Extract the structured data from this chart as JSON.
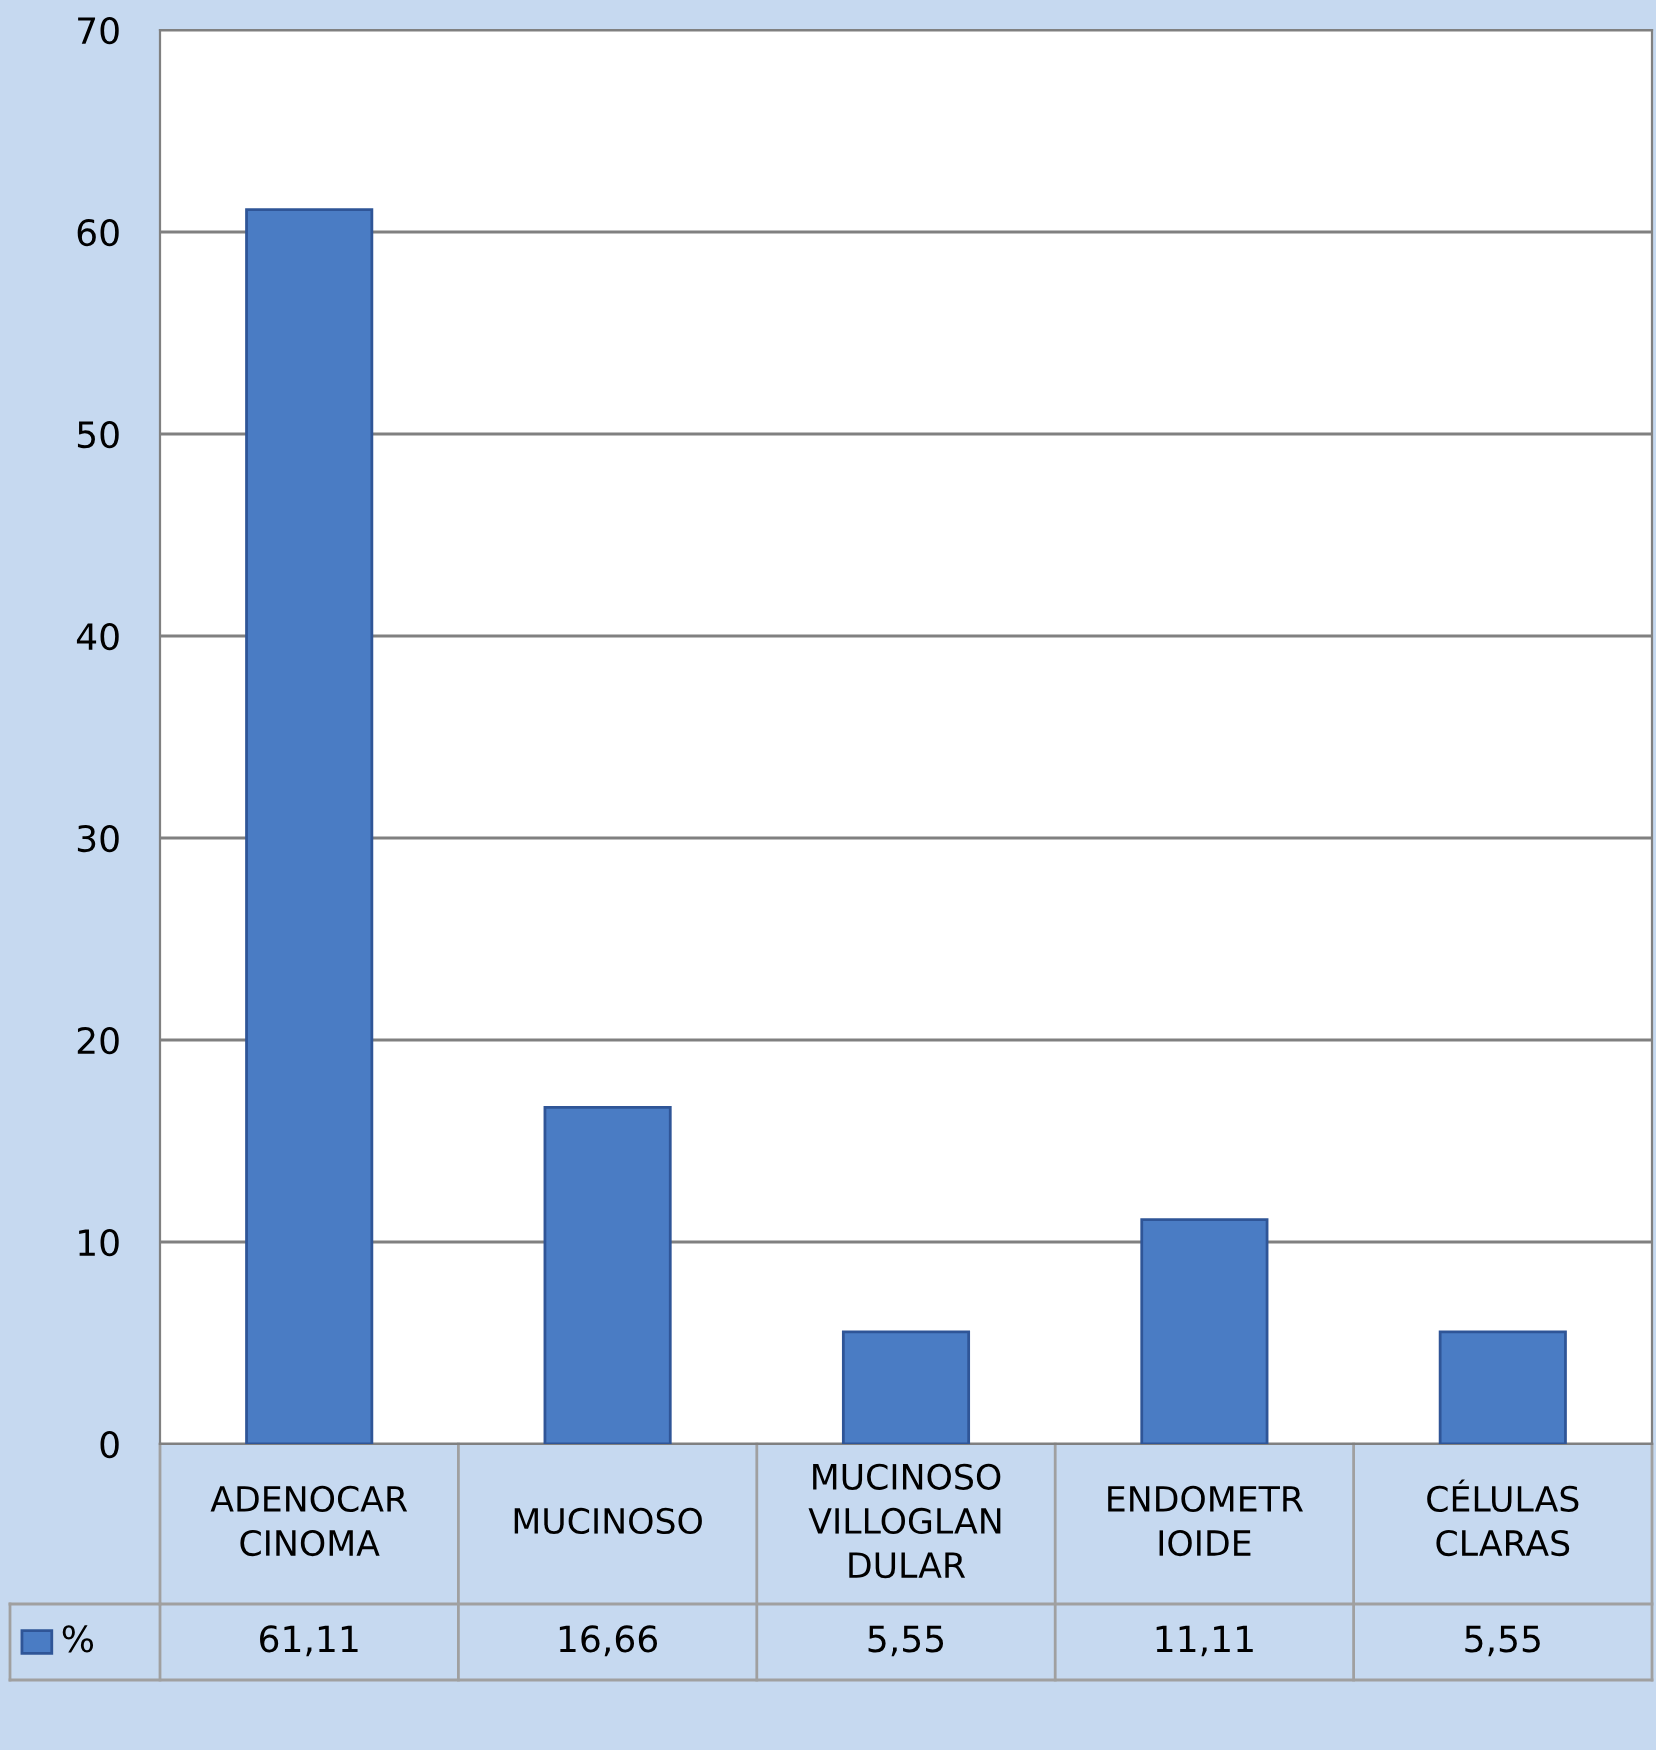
{
  "chart_data": {
    "type": "bar",
    "categories": [
      "ADENOCAR\nCINOMA",
      "MUCINOSO",
      "MUCINOSO\nVILLOGLAN\nDULAR",
      "ENDOMETR\nIOIDE",
      "CÉLULAS\nCLARAS"
    ],
    "series": [
      {
        "name": "%",
        "color": "#4a7cc4",
        "values": [
          61.11,
          16.66,
          5.55,
          11.11,
          5.55
        ],
        "value_labels": [
          "61,11",
          "16,66",
          "5,55",
          "11,11",
          "5,55"
        ]
      }
    ],
    "ylim": [
      0,
      70
    ],
    "yticks": [
      0,
      10,
      20,
      30,
      40,
      50,
      60,
      70
    ],
    "grid": "y",
    "legend": "bottom left"
  }
}
